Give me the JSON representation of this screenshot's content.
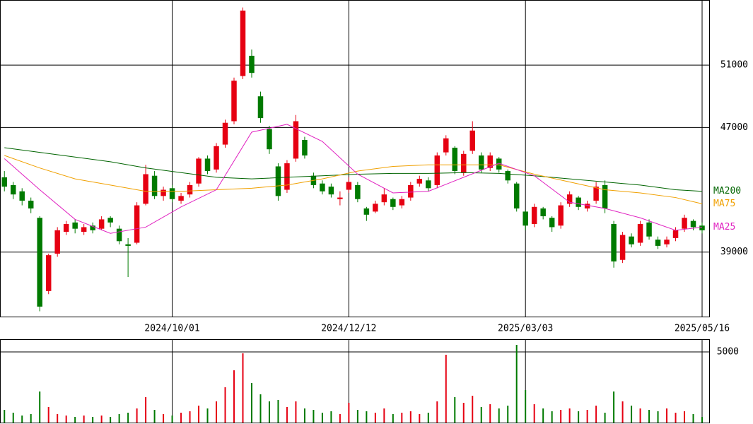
{
  "chart_data": {
    "type": "candlestick",
    "up_color": "#e60012",
    "down_color": "#007a00",
    "xlim": [
      -0.5,
      79.8
    ],
    "xticks": [
      {
        "value": 19,
        "label": "2024/10/01"
      },
      {
        "value": 39,
        "label": "2024/12/12"
      },
      {
        "value": 59,
        "label": "2025/03/03"
      },
      {
        "value": 79,
        "label": "2025/05/16"
      }
    ],
    "ylim": [
      34860,
      55180
    ],
    "yticks": [
      39000,
      47000,
      51000
    ],
    "grid": true,
    "ohlc": [
      [
        43800,
        44200,
        42900,
        43200
      ],
      [
        43300,
        43500,
        42400,
        42700
      ],
      [
        42900,
        43100,
        42000,
        42300
      ],
      [
        42300,
        42500,
        41500,
        41800
      ],
      [
        41200,
        41300,
        35200,
        35500
      ],
      [
        36500,
        38900,
        36300,
        38800
      ],
      [
        38900,
        40600,
        38700,
        40400
      ],
      [
        40300,
        41000,
        40100,
        40800
      ],
      [
        40900,
        41100,
        40200,
        40500
      ],
      [
        40300,
        40800,
        40100,
        40600
      ],
      [
        40700,
        40900,
        40200,
        40400
      ],
      [
        40500,
        41300,
        40400,
        41100
      ],
      [
        41200,
        41300,
        40600,
        40900
      ],
      [
        40500,
        40700,
        39500,
        39700
      ],
      [
        39500,
        39900,
        37400,
        39400
      ],
      [
        39600,
        42200,
        39500,
        42000
      ],
      [
        42100,
        44600,
        42000,
        44000
      ],
      [
        43900,
        44200,
        42400,
        42600
      ],
      [
        42600,
        43200,
        42300,
        43000
      ],
      [
        43100,
        43300,
        42200,
        42400
      ],
      [
        42300,
        42800,
        42100,
        42600
      ],
      [
        42700,
        43500,
        42500,
        43300
      ],
      [
        43400,
        45100,
        43200,
        45000
      ],
      [
        45000,
        45200,
        44000,
        44200
      ],
      [
        44300,
        46000,
        44100,
        45800
      ],
      [
        45900,
        47500,
        45700,
        47300
      ],
      [
        47400,
        50200,
        47200,
        50000
      ],
      [
        50300,
        54700,
        50100,
        54500
      ],
      [
        51600,
        52000,
        50200,
        50500
      ],
      [
        49000,
        49300,
        47300,
        47600
      ],
      [
        46900,
        47100,
        45300,
        45600
      ],
      [
        44500,
        44700,
        42300,
        42600
      ],
      [
        43000,
        44900,
        42800,
        44700
      ],
      [
        45000,
        47800,
        44800,
        47400
      ],
      [
        46200,
        46400,
        45000,
        45200
      ],
      [
        43900,
        44100,
        43100,
        43300
      ],
      [
        43400,
        43600,
        42700,
        42900
      ],
      [
        43200,
        43400,
        42500,
        42700
      ],
      [
        42400,
        42900,
        42000,
        42500
      ],
      [
        43000,
        43800,
        42800,
        43500
      ],
      [
        43300,
        43500,
        42200,
        42400
      ],
      [
        41800,
        41900,
        41000,
        41400
      ],
      [
        41600,
        42300,
        41500,
        42100
      ],
      [
        42200,
        43100,
        42000,
        42700
      ],
      [
        42400,
        42500,
        41700,
        41900
      ],
      [
        42000,
        42600,
        41800,
        42400
      ],
      [
        42500,
        43500,
        42300,
        43300
      ],
      [
        43400,
        43900,
        43200,
        43700
      ],
      [
        43600,
        43800,
        42900,
        43100
      ],
      [
        43300,
        45400,
        43100,
        45200
      ],
      [
        45400,
        46500,
        45200,
        46300
      ],
      [
        45700,
        45800,
        44000,
        44200
      ],
      [
        44100,
        45500,
        43900,
        45300
      ],
      [
        45500,
        47400,
        45300,
        46800
      ],
      [
        45200,
        45400,
        44100,
        44300
      ],
      [
        44400,
        45400,
        44200,
        45200
      ],
      [
        45000,
        45100,
        44100,
        44300
      ],
      [
        44200,
        44300,
        43400,
        43600
      ],
      [
        43400,
        43500,
        41600,
        41800
      ],
      [
        41600,
        41700,
        40400,
        40700
      ],
      [
        40800,
        42100,
        40600,
        41900
      ],
      [
        41800,
        41900,
        41100,
        41300
      ],
      [
        41200,
        41300,
        40300,
        40600
      ],
      [
        40700,
        42200,
        40500,
        42000
      ],
      [
        42100,
        42900,
        41900,
        42700
      ],
      [
        42500,
        42600,
        41700,
        41900
      ],
      [
        41800,
        42300,
        41600,
        42100
      ],
      [
        42300,
        43500,
        42100,
        43200
      ],
      [
        43300,
        43600,
        41500,
        41800
      ],
      [
        40800,
        41000,
        38000,
        38400
      ],
      [
        38500,
        40300,
        38300,
        40100
      ],
      [
        40000,
        40200,
        39300,
        39500
      ],
      [
        39600,
        41000,
        39400,
        40800
      ],
      [
        40900,
        41100,
        39800,
        40000
      ],
      [
        39800,
        40000,
        39200,
        39400
      ],
      [
        39500,
        40000,
        39300,
        39800
      ],
      [
        39900,
        40600,
        39700,
        40400
      ],
      [
        40500,
        41400,
        40300,
        41200
      ],
      [
        41000,
        41100,
        40400,
        40600
      ],
      [
        40700,
        40900,
        40200,
        40400
      ]
    ],
    "series": [
      {
        "name": "MA200",
        "color": "#006400",
        "x": [
          0,
          4,
          8,
          12,
          16,
          20,
          24,
          28,
          32,
          36,
          40,
          44,
          48,
          52,
          56,
          60,
          64,
          68,
          72,
          76,
          79
        ],
        "values": [
          45700,
          45400,
          45100,
          44800,
          44400,
          44100,
          43800,
          43700,
          43800,
          43900,
          44000,
          44050,
          44050,
          44100,
          44050,
          43900,
          43700,
          43500,
          43300,
          43000,
          42900
        ]
      },
      {
        "name": "MA75",
        "color": "#f0a000",
        "x": [
          0,
          4,
          8,
          12,
          16,
          20,
          24,
          28,
          32,
          36,
          40,
          44,
          48,
          52,
          56,
          60,
          64,
          68,
          72,
          76,
          79
        ],
        "values": [
          45200,
          44400,
          43700,
          43300,
          42900,
          42900,
          43000,
          43100,
          43300,
          43700,
          44200,
          44500,
          44600,
          44600,
          44600,
          44000,
          43500,
          43000,
          42800,
          42500,
          42100
        ]
      },
      {
        "name": "MA25",
        "color": "#e020c0",
        "x": [
          0,
          4,
          8,
          12,
          16,
          20,
          24,
          28,
          32,
          36,
          40,
          44,
          48,
          52,
          56,
          60,
          64,
          68,
          72,
          76,
          79
        ],
        "values": [
          45000,
          43000,
          41100,
          40200,
          40600,
          41900,
          43000,
          46700,
          47200,
          46100,
          44000,
          42800,
          42900,
          43800,
          44700,
          43900,
          42200,
          41800,
          41200,
          40400,
          40600
        ]
      }
    ],
    "volume": {
      "ylim": [
        0,
        5900
      ],
      "yticks": [
        5000
      ],
      "values": [
        900,
        700,
        500,
        600,
        2200,
        1100,
        600,
        500,
        400,
        500,
        400,
        500,
        400,
        600,
        700,
        1000,
        1800,
        900,
        600,
        500,
        700,
        800,
        1200,
        1000,
        1500,
        2500,
        3700,
        4900,
        2800,
        2000,
        1500,
        1600,
        1100,
        1500,
        1000,
        900,
        700,
        800,
        600,
        1400,
        900,
        800,
        700,
        1000,
        600,
        700,
        800,
        600,
        700,
        1500,
        4800,
        1800,
        1400,
        1900,
        1100,
        1300,
        1000,
        1200,
        5500,
        2300,
        1300,
        1000,
        800,
        900,
        1000,
        800,
        900,
        1200,
        700,
        2200,
        1500,
        1200,
        1000,
        900,
        800,
        1000,
        700,
        800,
        600,
        400
      ]
    }
  }
}
